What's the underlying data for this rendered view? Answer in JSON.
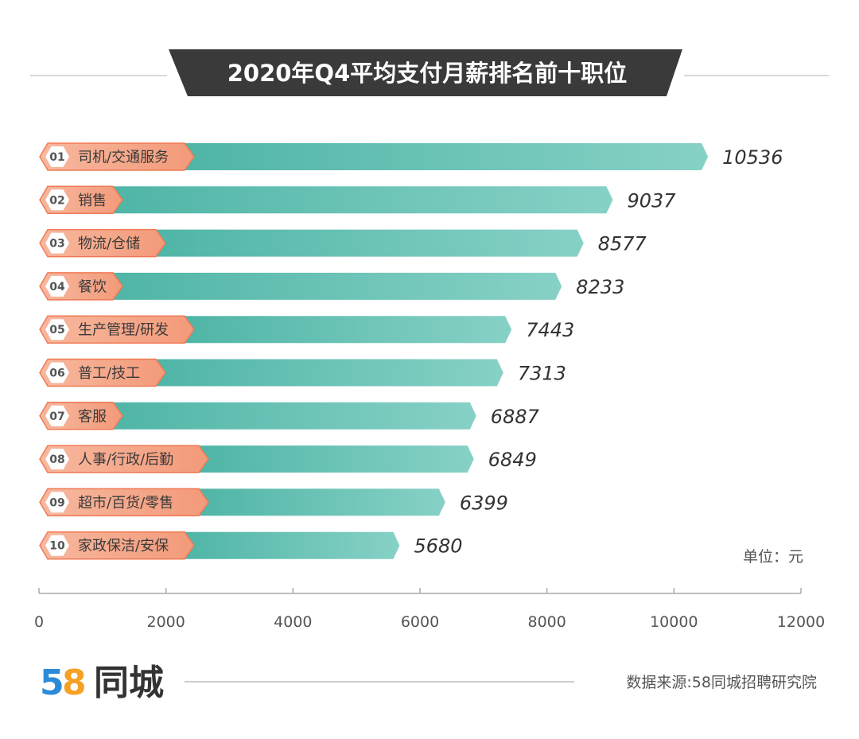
{
  "chart_data": {
    "type": "bar",
    "orientation": "horizontal",
    "title": "2020年Q4平均支付月薪排名前十职位",
    "ranks": [
      "01",
      "02",
      "03",
      "04",
      "05",
      "06",
      "07",
      "08",
      "09",
      "10"
    ],
    "categories": [
      "司机/交通服务",
      "销售",
      "物流/仓储",
      "餐饮",
      "生产管理/研发",
      "普工/技工",
      "客服",
      "人事/行政/后勤",
      "超市/百货/零售",
      "家政保洁/安保"
    ],
    "values": [
      10536,
      9037,
      8577,
      8233,
      7443,
      7313,
      6887,
      6849,
      6399,
      5680
    ],
    "value_labels": [
      "10536",
      "9037",
      "8577",
      "8233",
      "7443",
      "7313",
      "6887",
      "6849",
      "6399",
      "5680"
    ],
    "xlim": [
      0,
      12000
    ],
    "xticks": [
      "0",
      "2000",
      "4000",
      "6000",
      "8000",
      "10000",
      "12000"
    ],
    "unit": "单位：元",
    "grid": false
  },
  "footer": {
    "logo_num_5": "5",
    "logo_num_8": "8",
    "logo_text": "同城",
    "source": "数据来源:58同城招聘研究院"
  },
  "colors": {
    "bar_start": "#4fb5a6",
    "bar_end": "#85d0c4",
    "label_fill": "#f5a88a",
    "label_stroke": "#f07a55",
    "title_bg": "#3a3a3a"
  }
}
